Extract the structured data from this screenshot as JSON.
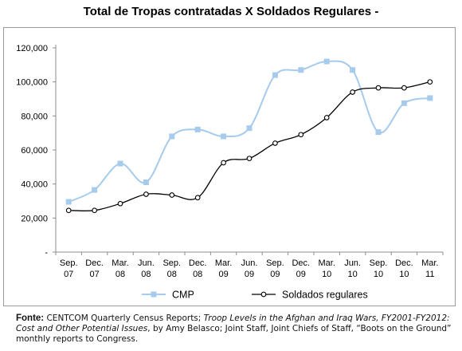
{
  "chart_data": {
    "type": "line",
    "title": "Total de Tropas contratadas X Soldados Regulares -",
    "categories": [
      [
        "Sep.",
        "07"
      ],
      [
        "Dec.",
        "07"
      ],
      [
        "Mar.",
        "08"
      ],
      [
        "Jun.",
        "08"
      ],
      [
        "Sep.",
        "08"
      ],
      [
        "Dec.",
        "08"
      ],
      [
        "Mar.",
        "09"
      ],
      [
        "Jun.",
        "09"
      ],
      [
        "Sep.",
        "09"
      ],
      [
        "Dec.",
        "09"
      ],
      [
        "Mar.",
        "10"
      ],
      [
        "Jun.",
        "10"
      ],
      [
        "Sep.",
        "10"
      ],
      [
        "Dec.",
        "10"
      ],
      [
        "Mar.",
        "11"
      ]
    ],
    "yticks": [
      "-",
      "20,000",
      "40,000",
      "60,000",
      "80,000",
      "100,000",
      "120,000"
    ],
    "ylim": [
      0,
      120000
    ],
    "grid": false,
    "legend_position": "bottom",
    "series": [
      {
        "name": "CMP",
        "color": "#a6cbed",
        "marker": "square",
        "values": [
          29500,
          36500,
          52000,
          41000,
          68000,
          72000,
          68000,
          72800,
          104000,
          107000,
          112000,
          107000,
          70500,
          87500,
          90500
        ]
      },
      {
        "name": "Soldados regulares",
        "color": "#000000",
        "marker": "open-circle",
        "values": [
          24500,
          24500,
          28500,
          34000,
          33500,
          32000,
          52500,
          55000,
          64000,
          69000,
          79000,
          94000,
          96500,
          96500,
          100000
        ]
      }
    ]
  },
  "source": {
    "label": "Fonte:",
    "part1": " CENTCOM Quarterly Census Reports; ",
    "italic1": "Troop Levels in the Afghan and Iraq Wars, FY2001-FY2012: Cost and Other Potential Issues",
    "part2": ", by Amy Belasco; Joint Staff, Joint Chiefs of Staff, “Boots on the Ground” monthly reports to Congress."
  }
}
